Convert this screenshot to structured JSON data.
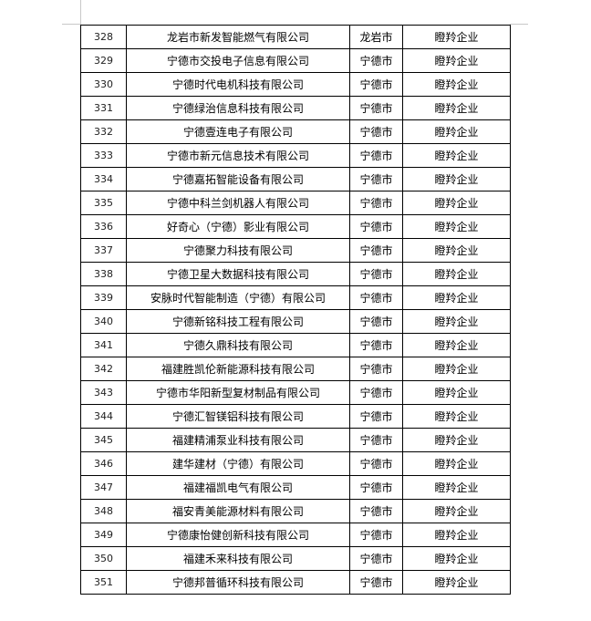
{
  "table": {
    "rows": [
      [
        328,
        "龙岩市新发智能燃气有限公司",
        "龙岩市",
        "瞪羚企业"
      ],
      [
        329,
        "宁德市交投电子信息有限公司",
        "宁德市",
        "瞪羚企业"
      ],
      [
        330,
        "宁德时代电机科技有限公司",
        "宁德市",
        "瞪羚企业"
      ],
      [
        331,
        "宁德绿治信息科技有限公司",
        "宁德市",
        "瞪羚企业"
      ],
      [
        332,
        "宁德壹连电子有限公司",
        "宁德市",
        "瞪羚企业"
      ],
      [
        333,
        "宁德市新元信息技术有限公司",
        "宁德市",
        "瞪羚企业"
      ],
      [
        334,
        "宁德嘉拓智能设备有限公司",
        "宁德市",
        "瞪羚企业"
      ],
      [
        335,
        "宁德中科兰剑机器人有限公司",
        "宁德市",
        "瞪羚企业"
      ],
      [
        336,
        "好奇心（宁德）影业有限公司",
        "宁德市",
        "瞪羚企业"
      ],
      [
        337,
        "宁德聚力科技有限公司",
        "宁德市",
        "瞪羚企业"
      ],
      [
        338,
        "宁德卫星大数据科技有限公司",
        "宁德市",
        "瞪羚企业"
      ],
      [
        339,
        "安脉时代智能制造（宁德）有限公司",
        "宁德市",
        "瞪羚企业"
      ],
      [
        340,
        "宁德新铭科技工程有限公司",
        "宁德市",
        "瞪羚企业"
      ],
      [
        341,
        "宁德久鼎科技有限公司",
        "宁德市",
        "瞪羚企业"
      ],
      [
        342,
        "福建胜凯伦新能源科技有限公司",
        "宁德市",
        "瞪羚企业"
      ],
      [
        343,
        "宁德市华阳新型复材制品有限公司",
        "宁德市",
        "瞪羚企业"
      ],
      [
        344,
        "宁德汇智镁铝科技有限公司",
        "宁德市",
        "瞪羚企业"
      ],
      [
        345,
        "福建精浦泵业科技有限公司",
        "宁德市",
        "瞪羚企业"
      ],
      [
        346,
        "建华建材（宁德）有限公司",
        "宁德市",
        "瞪羚企业"
      ],
      [
        347,
        "福建福凯电气有限公司",
        "宁德市",
        "瞪羚企业"
      ],
      [
        348,
        "福安青美能源材料有限公司",
        "宁德市",
        "瞪羚企业"
      ],
      [
        349,
        "宁德康怡健创新科技有限公司",
        "宁德市",
        "瞪羚企业"
      ],
      [
        350,
        "福建禾来科技有限公司",
        "宁德市",
        "瞪羚企业"
      ],
      [
        351,
        "宁德邦普循环科技有限公司",
        "宁德市",
        "瞪羚企业"
      ]
    ]
  }
}
